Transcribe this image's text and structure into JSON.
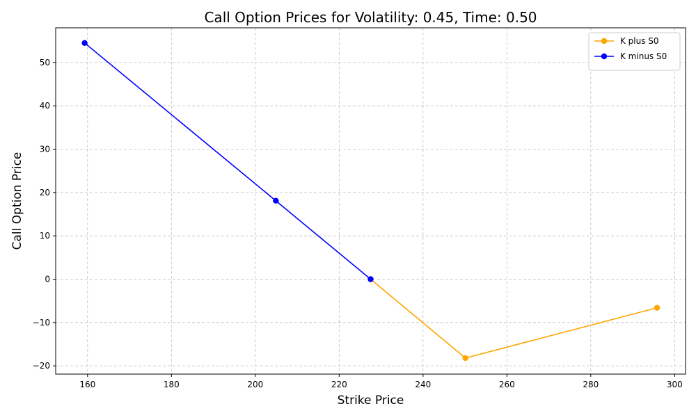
{
  "chart_data": {
    "type": "line",
    "title": "Call Option Prices for Volatility: 0.45, Time: 0.50",
    "xlabel": "Strike Price",
    "ylabel": "Call Option Price",
    "xlim": [
      152.4,
      302.6
    ],
    "ylim": [
      -21.9,
      58.0
    ],
    "xticks": [
      160,
      180,
      200,
      220,
      240,
      260,
      280,
      300
    ],
    "yticks": [
      -20,
      -10,
      0,
      10,
      20,
      30,
      40,
      50
    ],
    "grid": true,
    "legend_position": "top-right",
    "series": [
      {
        "name": "K plus S0",
        "color": "#ffa500",
        "marker": "circle",
        "x": [
          227.5,
          250.1,
          295.8
        ],
        "y": [
          0.0,
          -18.2,
          -6.6
        ]
      },
      {
        "name": "K minus S0",
        "color": "#0000ff",
        "marker": "circle",
        "x": [
          159.3,
          204.9,
          227.5
        ],
        "y": [
          54.5,
          18.1,
          0.0
        ]
      }
    ]
  }
}
